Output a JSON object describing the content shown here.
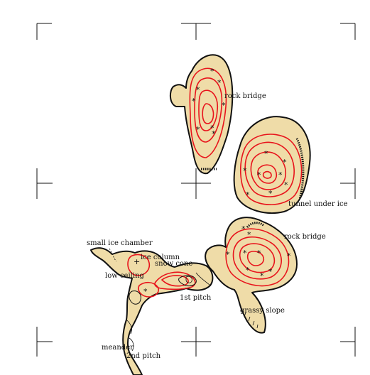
{
  "map": {
    "colors": {
      "cave_fill": "#efdca8",
      "cave_outline": "#111111",
      "ice_contour": "#e8141c",
      "background": "#ffffff"
    },
    "labels": {
      "rock_bridge_upper": "rock bridge",
      "tunnel_under_ice": "tunnel under ice",
      "rock_bridge_lower": "rock bridge",
      "small_ice_chamber": "small ice chamber",
      "ice_column": "ice column",
      "snow_cone": "snow cone",
      "low_ceiling": "low ceiling",
      "first_pitch": "1st pitch",
      "grassy_slope": "grassy slope",
      "meander": "meander",
      "second_pitch": "2nd pitch"
    },
    "symbols": {
      "ice_star": "snowflake-asterisk",
      "ice_column": "plus-sign"
    }
  }
}
